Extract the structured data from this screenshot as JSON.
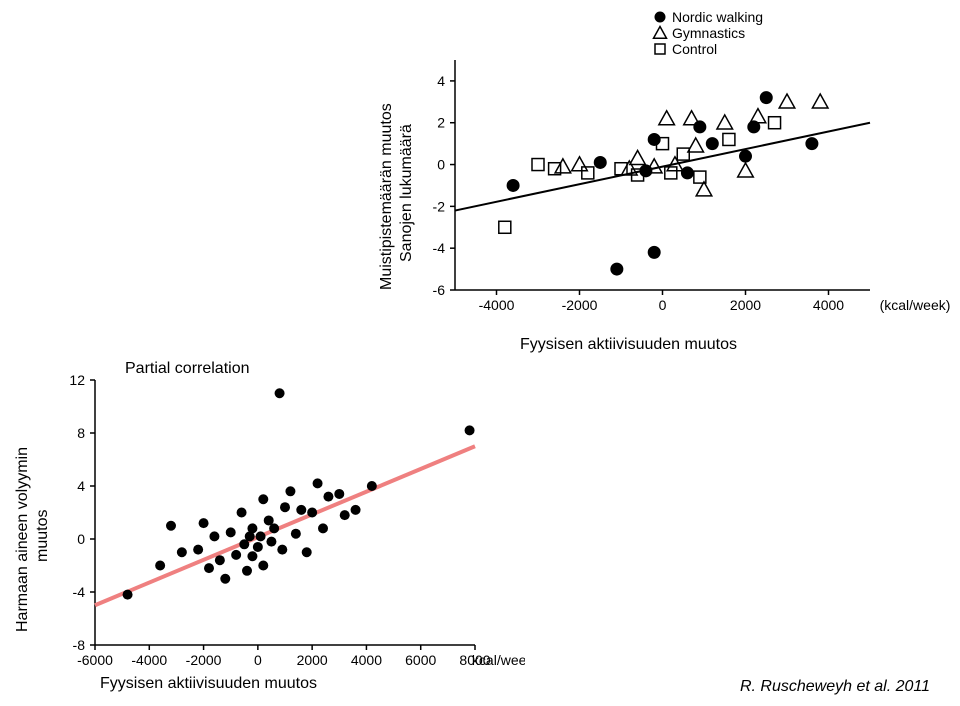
{
  "top_chart": {
    "type": "scatter",
    "legend": {
      "items": [
        {
          "label": "Nordic walking",
          "marker": "circle-filled"
        },
        {
          "label": "Gymnastics",
          "marker": "triangle-open"
        },
        {
          "label": "Control",
          "marker": "square-open"
        }
      ],
      "fontsize": 14
    },
    "xlim": [
      -5000,
      5000
    ],
    "ylim": [
      -6,
      5
    ],
    "xtick_step": 2000,
    "ytick_step": 2,
    "x_unit_label": "(kcal/week)",
    "tick_fontsize": 14,
    "axis_color": "#000000",
    "tick_color": "#000000",
    "marker_size": 6,
    "line": {
      "x1": -5000,
      "y1": -2.2,
      "x2": 5000,
      "y2": 2.0,
      "width": 2,
      "color": "#000000"
    },
    "series": {
      "nordic": [
        [
          -1100,
          -5.0
        ],
        [
          -200,
          -4.2
        ],
        [
          -3600,
          -1.0
        ],
        [
          -1500,
          0.1
        ],
        [
          -400,
          -0.3
        ],
        [
          -200,
          1.2
        ],
        [
          600,
          -0.4
        ],
        [
          900,
          1.8
        ],
        [
          1200,
          1.0
        ],
        [
          2000,
          0.4
        ],
        [
          2200,
          1.8
        ],
        [
          2500,
          3.2
        ],
        [
          3600,
          1.0
        ]
      ],
      "gymnastics": [
        [
          -2400,
          -0.1
        ],
        [
          -2000,
          0.0
        ],
        [
          -800,
          -0.2
        ],
        [
          -600,
          0.3
        ],
        [
          -200,
          -0.1
        ],
        [
          100,
          2.2
        ],
        [
          300,
          0.0
        ],
        [
          700,
          2.2
        ],
        [
          800,
          0.9
        ],
        [
          1000,
          -1.2
        ],
        [
          1500,
          2.0
        ],
        [
          2000,
          -0.3
        ],
        [
          2300,
          2.3
        ],
        [
          3000,
          3.0
        ],
        [
          3800,
          3.0
        ]
      ],
      "control": [
        [
          -3800,
          -3.0
        ],
        [
          -3000,
          0.0
        ],
        [
          -2600,
          -0.2
        ],
        [
          -1800,
          -0.4
        ],
        [
          -1000,
          -0.2
        ],
        [
          -600,
          -0.5
        ],
        [
          0,
          1.0
        ],
        [
          200,
          -0.4
        ],
        [
          500,
          0.5
        ],
        [
          900,
          -0.6
        ],
        [
          1600,
          1.2
        ],
        [
          2700,
          2.0
        ]
      ]
    }
  },
  "bottom_chart": {
    "type": "scatter",
    "title": "Partial correlation",
    "title_fontsize": 16,
    "xlim": [
      -6000,
      8000
    ],
    "ylim": [
      -8,
      12
    ],
    "xtick_step": 2000,
    "ytick_step": 4,
    "x_unit_label": "kcal/week)",
    "tick_fontsize": 14,
    "axis_color": "#000000",
    "marker_color": "#000000",
    "marker_size": 5,
    "line": {
      "x1": -6000,
      "y1": -5.0,
      "x2": 8000,
      "y2": 7.0,
      "width": 4,
      "color": "#ef8080"
    },
    "points": [
      [
        -4800,
        -4.2
      ],
      [
        -3600,
        -2.0
      ],
      [
        -3200,
        1.0
      ],
      [
        -2800,
        -1.0
      ],
      [
        -2200,
        -0.8
      ],
      [
        -2000,
        1.2
      ],
      [
        -1800,
        -2.2
      ],
      [
        -1600,
        0.2
      ],
      [
        -1400,
        -1.6
      ],
      [
        -1200,
        -3.0
      ],
      [
        -1000,
        0.5
      ],
      [
        -800,
        -1.2
      ],
      [
        -600,
        2.0
      ],
      [
        -500,
        -0.4
      ],
      [
        -400,
        -2.4
      ],
      [
        -300,
        0.2
      ],
      [
        -200,
        0.8
      ],
      [
        -200,
        -1.3
      ],
      [
        0,
        -0.6
      ],
      [
        100,
        0.2
      ],
      [
        200,
        3.0
      ],
      [
        200,
        -2.0
      ],
      [
        400,
        1.4
      ],
      [
        500,
        -0.2
      ],
      [
        600,
        0.8
      ],
      [
        800,
        11.0
      ],
      [
        900,
        -0.8
      ],
      [
        1000,
        2.4
      ],
      [
        1200,
        3.6
      ],
      [
        1400,
        0.4
      ],
      [
        1600,
        2.2
      ],
      [
        1800,
        -1.0
      ],
      [
        2000,
        2.0
      ],
      [
        2200,
        4.2
      ],
      [
        2400,
        0.8
      ],
      [
        2600,
        3.2
      ],
      [
        3000,
        3.4
      ],
      [
        3200,
        1.8
      ],
      [
        3600,
        2.2
      ],
      [
        4200,
        4.0
      ],
      [
        7800,
        8.2
      ]
    ]
  },
  "labels": {
    "top_y1": "Muistipistemäärän muutos",
    "top_y2": "Sanojen lukumäärä",
    "top_x": "Fyysisen aktiivisuuden muutos",
    "bottom_y1": "Harmaan aineen volyymin",
    "bottom_y2": "muutos",
    "bottom_x": "Fyysisen aktiivisuuden muutos",
    "attribution": "R. Ruscheweyh et al. 2011"
  },
  "colors": {
    "background": "#ffffff",
    "text": "#000000"
  }
}
